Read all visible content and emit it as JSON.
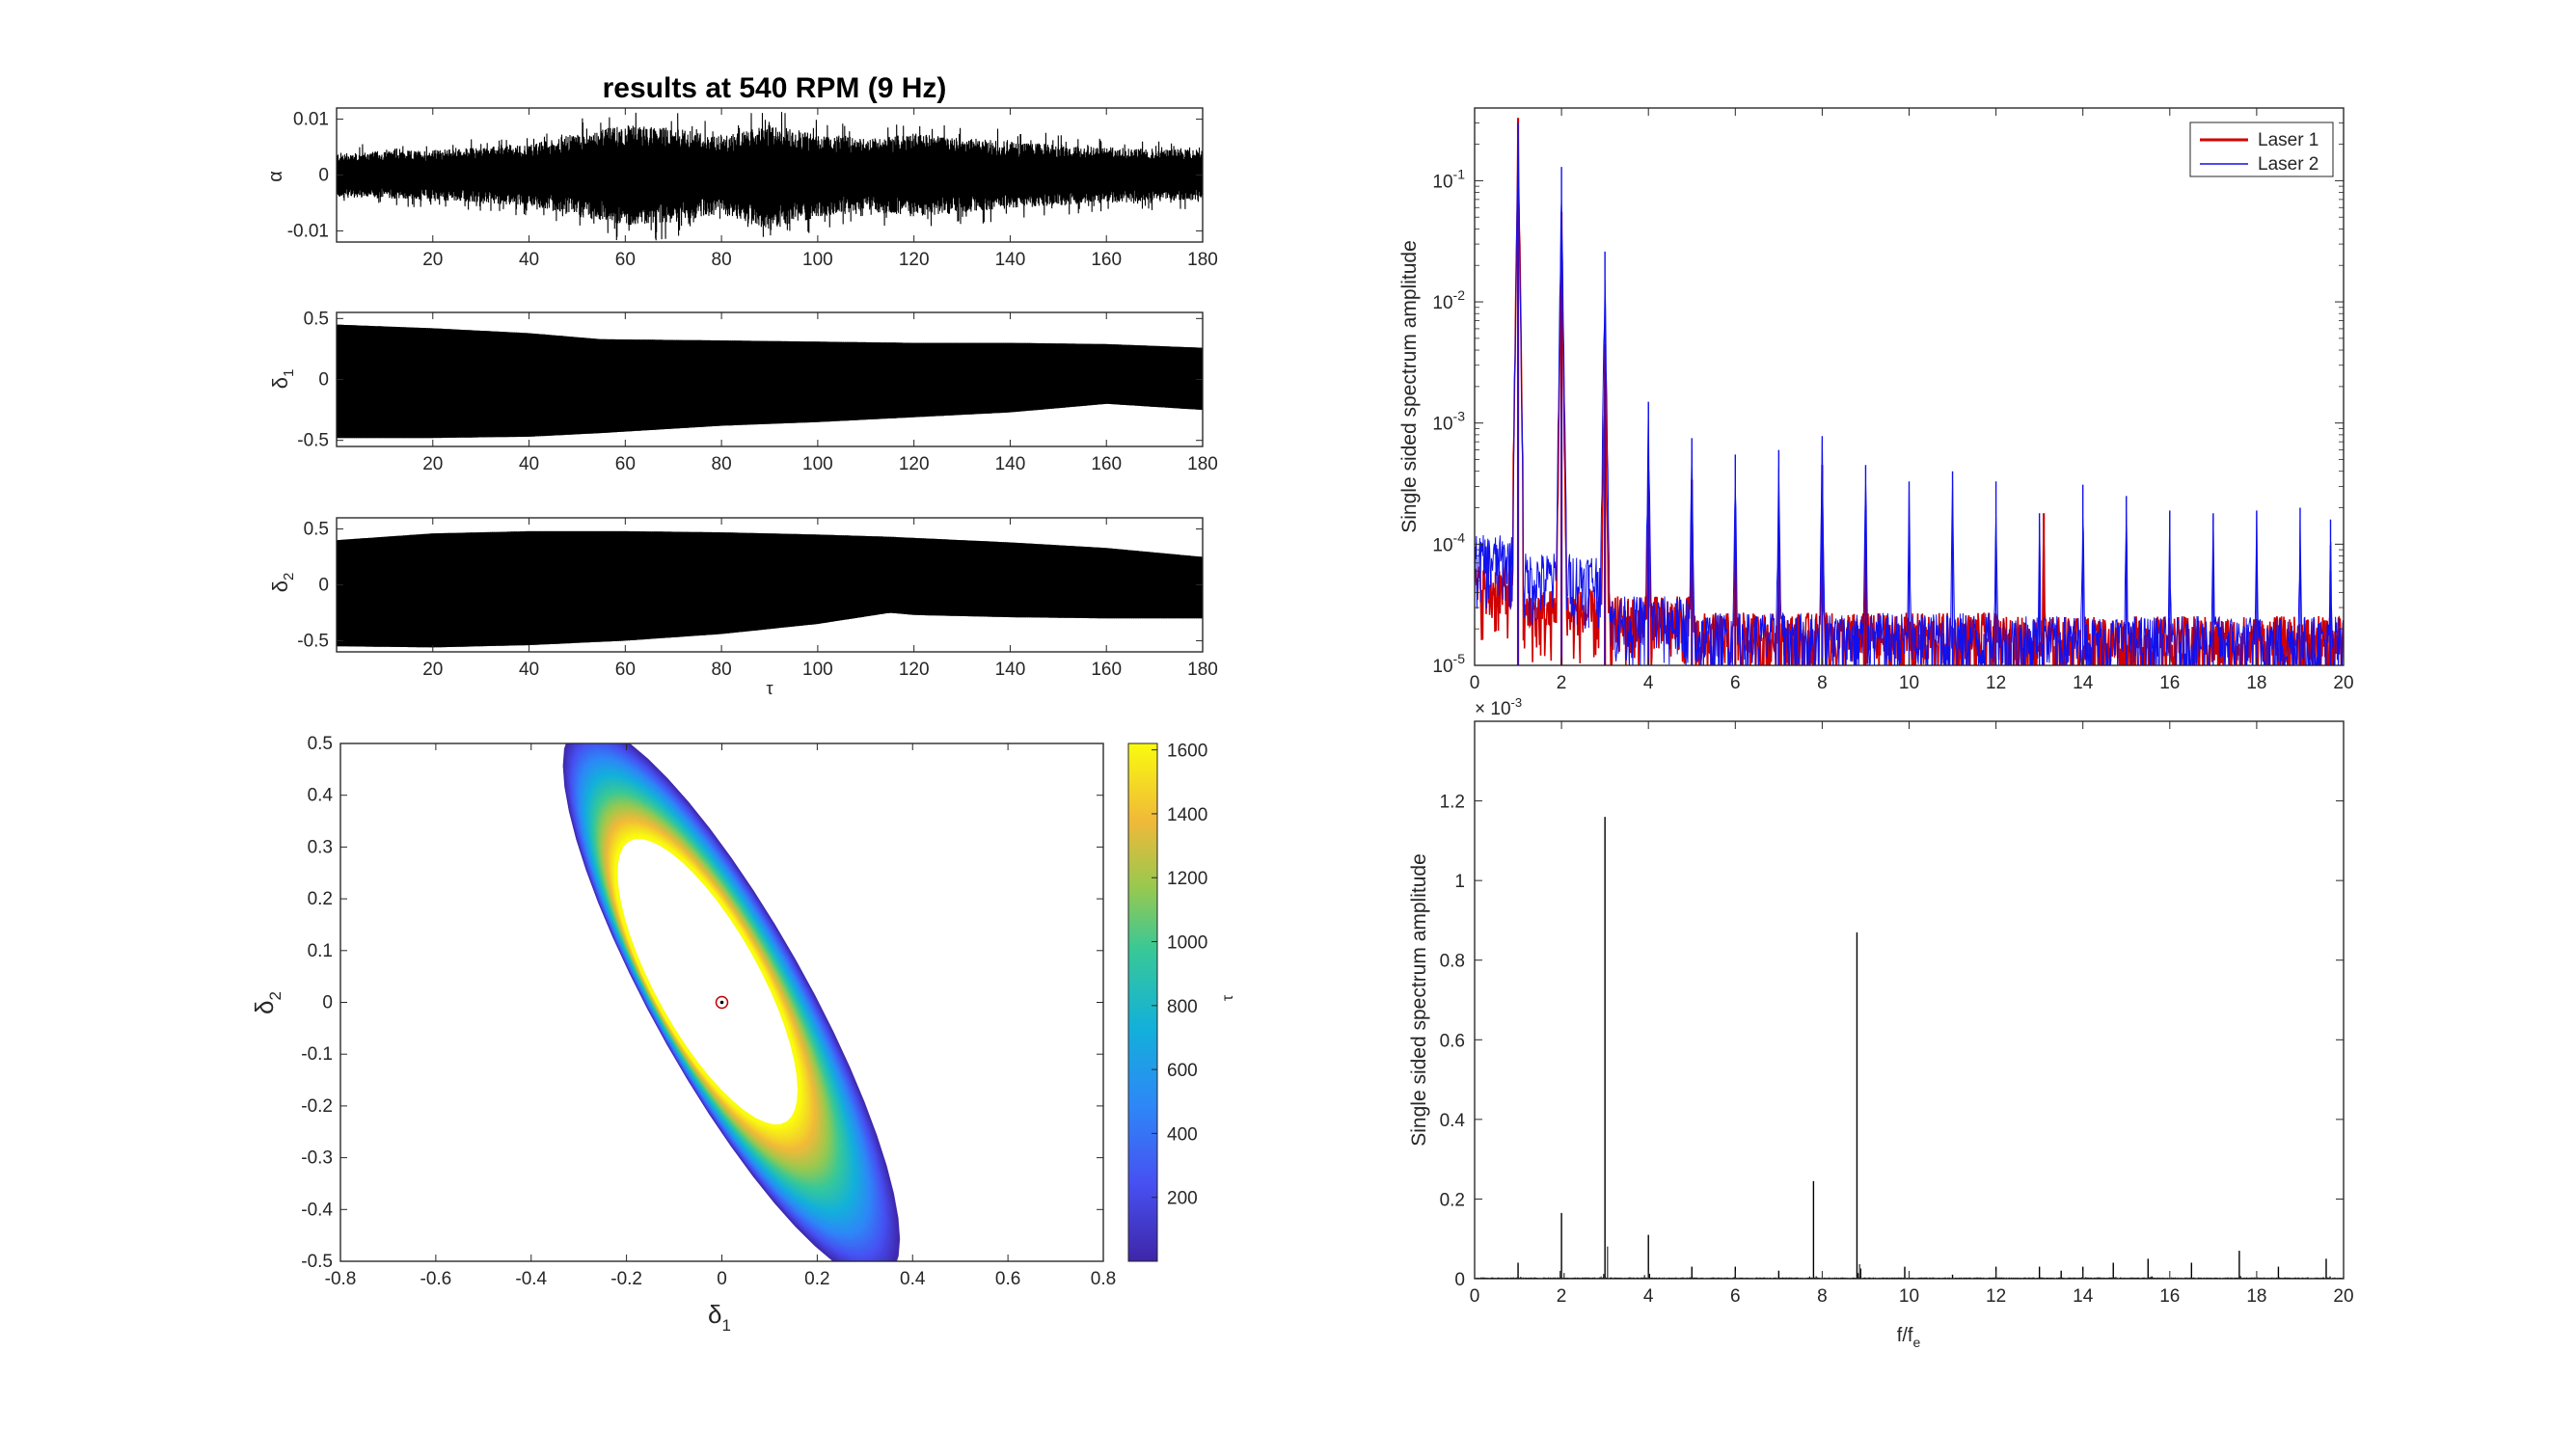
{
  "figure_title": "results at 540 RPM (9 Hz)",
  "chart_data": [
    {
      "id": "alpha",
      "type": "line",
      "title": "results at 540 RPM (9 Hz)",
      "ylabel": "α",
      "xlim": [
        0,
        180
      ],
      "ylim": [
        -0.012,
        0.012
      ],
      "xticks": [
        20,
        40,
        60,
        80,
        100,
        120,
        140,
        160,
        180
      ],
      "yticks": [
        -0.01,
        0,
        0.01
      ],
      "ytick_labels": [
        "-0.01",
        "0",
        "0.01"
      ],
      "envelope_x": [
        0,
        20,
        40,
        50,
        60,
        70,
        80,
        90,
        100,
        110,
        120,
        140,
        160,
        180
      ],
      "envelope_upper": [
        0.004,
        0.0045,
        0.0055,
        0.0075,
        0.009,
        0.0085,
        0.007,
        0.009,
        0.0075,
        0.0065,
        0.0075,
        0.006,
        0.005,
        0.0045
      ],
      "envelope_lower": [
        -0.004,
        -0.0045,
        -0.0055,
        -0.0075,
        -0.009,
        -0.0085,
        -0.007,
        -0.01,
        -0.0075,
        -0.0065,
        -0.0075,
        -0.006,
        -0.005,
        -0.0045
      ],
      "color": "#000000"
    },
    {
      "id": "delta1",
      "type": "area",
      "ylabel": "δ1",
      "xlim": [
        0,
        180
      ],
      "ylim": [
        -0.55,
        0.55
      ],
      "xticks": [
        20,
        40,
        60,
        80,
        100,
        120,
        140,
        160,
        180
      ],
      "yticks": [
        -0.5,
        0,
        0.5
      ],
      "ytick_labels": [
        "-0.5",
        "0",
        "0.5"
      ],
      "envelope_x": [
        0,
        20,
        40,
        55,
        80,
        100,
        120,
        140,
        160,
        180
      ],
      "envelope_upper": [
        0.45,
        0.42,
        0.38,
        0.33,
        0.32,
        0.31,
        0.3,
        0.3,
        0.29,
        0.26
      ],
      "envelope_lower": [
        -0.48,
        -0.48,
        -0.47,
        -0.44,
        -0.38,
        -0.35,
        -0.31,
        -0.27,
        -0.2,
        -0.25
      ],
      "color": "#000000"
    },
    {
      "id": "delta2",
      "type": "area",
      "xlabel": "τ",
      "ylabel": "δ2",
      "xlim": [
        0,
        180
      ],
      "ylim": [
        -0.6,
        0.6
      ],
      "xticks": [
        20,
        40,
        60,
        80,
        100,
        120,
        140,
        160,
        180
      ],
      "yticks": [
        -0.5,
        0,
        0.5
      ],
      "ytick_labels": [
        "-0.5",
        "0",
        "0.5"
      ],
      "envelope_x": [
        0,
        20,
        40,
        60,
        80,
        100,
        115,
        120,
        140,
        160,
        180
      ],
      "envelope_upper": [
        0.4,
        0.46,
        0.48,
        0.48,
        0.47,
        0.45,
        0.43,
        0.42,
        0.38,
        0.33,
        0.25
      ],
      "envelope_lower": [
        -0.55,
        -0.56,
        -0.54,
        -0.5,
        -0.44,
        -0.35,
        -0.25,
        -0.27,
        -0.29,
        -0.3,
        -0.3
      ],
      "color": "#000000"
    },
    {
      "id": "phase",
      "type": "scatter",
      "xlabel": "δ1",
      "ylabel": "δ2",
      "xlim": [
        -0.8,
        0.8
      ],
      "ylim": [
        -0.5,
        0.5
      ],
      "xticks": [
        -0.8,
        -0.6,
        -0.4,
        -0.2,
        0,
        0.2,
        0.4,
        0.6,
        0.8
      ],
      "xtick_labels": [
        "-0.8",
        "-0.6",
        "-0.4",
        "-0.2",
        "0",
        "0.2",
        "0.4",
        "0.6",
        "0.8"
      ],
      "yticks": [
        -0.5,
        -0.4,
        -0.3,
        -0.2,
        -0.1,
        0,
        0.1,
        0.2,
        0.3,
        0.4,
        0.5
      ],
      "ytick_labels": [
        "-0.5",
        "-0.4",
        "-0.3",
        "-0.2",
        "-0.1",
        "0",
        "0.1",
        "0.2",
        "0.3",
        "0.4",
        "0.5"
      ],
      "colorbar": {
        "label": "τ",
        "range": [
          0,
          1620
        ],
        "ticks": [
          200,
          400,
          600,
          800,
          1000,
          1200,
          1400,
          1600
        ],
        "tick_labels": [
          "200",
          "400",
          "600",
          "800",
          "1000",
          "1200",
          "1400",
          "1600"
        ],
        "colormap": "parula"
      },
      "equilibrium_marker": {
        "x": 0,
        "y": 0,
        "color": "#c00000"
      }
    },
    {
      "id": "spectrum_log",
      "type": "line",
      "ylabel": "Single sided spectrum amplitude",
      "xlim": [
        0,
        20
      ],
      "ylim_log10": [
        -5,
        -0.4
      ],
      "yscale": "log",
      "xticks": [
        0,
        2,
        4,
        6,
        8,
        10,
        12,
        14,
        16,
        18,
        20
      ],
      "ytick_exponents": [
        -5,
        -4,
        -3,
        -2,
        -1
      ],
      "ytick_base": "10",
      "legend": {
        "placement": "top-right",
        "entries": [
          "Laser 1",
          "Laser 2"
        ]
      },
      "series": [
        {
          "name": "Laser 1",
          "color": "#d00000",
          "peaks_x": [
            1,
            2,
            3,
            4,
            5,
            6,
            7,
            8,
            9,
            13.1,
            19.7
          ],
          "peaks_y": [
            0.33,
            0.055,
            0.0045,
            0.0004,
            0.00034,
            0.00011,
            0.00013,
            0.00045,
            0.00012,
            0.00018,
            6e-05
          ]
        },
        {
          "name": "Laser 2",
          "color": "#1010ee",
          "peaks_x": [
            1,
            2,
            3,
            4,
            5,
            6,
            7,
            8,
            9,
            10,
            11,
            12,
            13,
            14,
            15,
            16,
            17,
            18,
            19,
            19.7
          ],
          "peaks_y": [
            0.3,
            0.13,
            0.026,
            0.0015,
            0.00075,
            0.00055,
            0.0006,
            0.00078,
            0.00045,
            0.00033,
            0.0004,
            0.00033,
            0.00018,
            0.00031,
            0.00025,
            0.00019,
            0.00018,
            0.00019,
            0.0002,
            0.00016
          ]
        }
      ]
    },
    {
      "id": "spectrum_lin",
      "type": "line",
      "xlabel": "f/fe",
      "ylabel": "Single sided spectrum amplitude",
      "xlim": [
        0,
        20
      ],
      "ylim": [
        0,
        0.0014
      ],
      "y_exponent_label": "× 10",
      "y_exponent": "-3",
      "xticks": [
        0,
        2,
        4,
        6,
        8,
        10,
        12,
        14,
        16,
        18,
        20
      ],
      "yticks": [
        0,
        0.0002,
        0.0004,
        0.0006,
        0.0008,
        0.001,
        0.0012
      ],
      "ytick_labels": [
        "0",
        "0.2",
        "0.4",
        "0.6",
        "0.8",
        "1",
        "1.2"
      ],
      "peaks_x": [
        1,
        2,
        3,
        4,
        5,
        6,
        7,
        7.8,
        8.8,
        9.9,
        11,
        12,
        13,
        13.5,
        14,
        14.7,
        15.5,
        16.5,
        17.6,
        18.5,
        19.6
      ],
      "peaks_y": [
        4e-05,
        0.000165,
        0.00116,
        0.00011,
        3e-05,
        3e-05,
        2e-05,
        0.000245,
        0.00087,
        3e-05,
        1e-05,
        3e-05,
        3e-05,
        2e-05,
        3e-05,
        4e-05,
        5e-05,
        4e-05,
        7e-05,
        3e-05,
        5e-05
      ],
      "color": "#000000"
    }
  ]
}
